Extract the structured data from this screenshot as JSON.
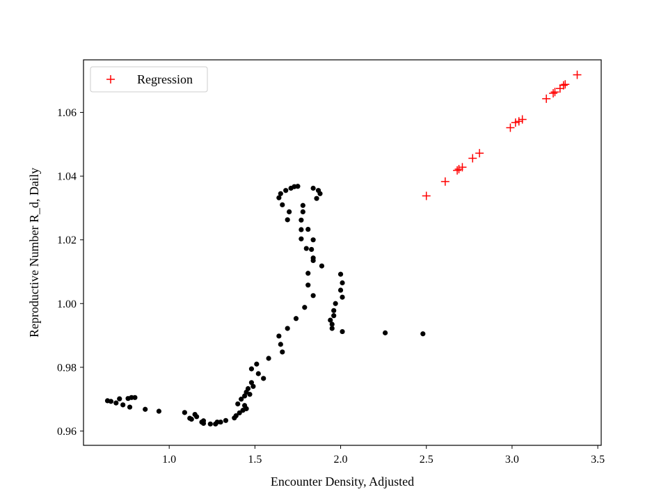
{
  "chart_data": {
    "type": "scatter",
    "title": "",
    "xlabel": "Encounter Density, Adjusted",
    "ylabel": "Reproductive Number R_d, Daily",
    "xlim": [
      0.5,
      3.52
    ],
    "ylim": [
      0.9555,
      1.0765
    ],
    "xticks": [
      1.0,
      1.5,
      2.0,
      2.5,
      3.0,
      3.5
    ],
    "xtick_labels": [
      "1.0",
      "1.5",
      "2.0",
      "2.5",
      "3.0",
      "3.5"
    ],
    "yticks": [
      0.96,
      0.98,
      1.0,
      1.02,
      1.04,
      1.06
    ],
    "ytick_labels": [
      "0.96",
      "0.98",
      "1.00",
      "1.02",
      "1.04",
      "1.06"
    ],
    "grid": false,
    "legend": {
      "position": "top-left",
      "entries": [
        "Regression"
      ]
    },
    "series": [
      {
        "marker": "dot",
        "color": "#000000",
        "points": [
          [
            0.64,
            0.9695
          ],
          [
            0.66,
            0.9693
          ],
          [
            0.69,
            0.9688
          ],
          [
            0.71,
            0.9701
          ],
          [
            0.73,
            0.9682
          ],
          [
            0.76,
            0.9702
          ],
          [
            0.77,
            0.9675
          ],
          [
            0.78,
            0.9705
          ],
          [
            0.8,
            0.9705
          ],
          [
            0.86,
            0.9668
          ],
          [
            0.94,
            0.9662
          ],
          [
            1.09,
            0.9658
          ],
          [
            1.12,
            0.964
          ],
          [
            1.13,
            0.9637
          ],
          [
            1.15,
            0.9652
          ],
          [
            1.16,
            0.9645
          ],
          [
            1.19,
            0.9628
          ],
          [
            1.2,
            0.9632
          ],
          [
            1.2,
            0.9624
          ],
          [
            1.24,
            0.9622
          ],
          [
            1.27,
            0.9622
          ],
          [
            1.28,
            0.9628
          ],
          [
            1.3,
            0.9628
          ],
          [
            1.33,
            0.9633
          ],
          [
            1.38,
            0.9641
          ],
          [
            1.39,
            0.9648
          ],
          [
            1.4,
            0.9685
          ],
          [
            1.41,
            0.9657
          ],
          [
            1.42,
            0.97
          ],
          [
            1.43,
            0.9665
          ],
          [
            1.44,
            0.971
          ],
          [
            1.44,
            0.968
          ],
          [
            1.45,
            0.9722
          ],
          [
            1.45,
            0.967
          ],
          [
            1.46,
            0.9733
          ],
          [
            1.47,
            0.9715
          ],
          [
            1.48,
            0.9752
          ],
          [
            1.48,
            0.9795
          ],
          [
            1.49,
            0.974
          ],
          [
            1.51,
            0.981
          ],
          [
            1.52,
            0.978
          ],
          [
            1.55,
            0.9765
          ],
          [
            1.58,
            0.9828
          ],
          [
            1.64,
            0.9898
          ],
          [
            1.65,
            0.9872
          ],
          [
            1.66,
            0.9848
          ],
          [
            1.69,
            0.9922
          ],
          [
            1.74,
            0.9953
          ],
          [
            1.79,
            0.9988
          ],
          [
            1.84,
            1.0025
          ],
          [
            1.81,
            1.0058
          ],
          [
            1.81,
            1.0095
          ],
          [
            1.84,
            1.0143
          ],
          [
            1.84,
            1.0135
          ],
          [
            1.83,
            1.017
          ],
          [
            1.8,
            1.0173
          ],
          [
            1.84,
            1.02
          ],
          [
            1.81,
            1.0233
          ],
          [
            1.77,
            1.0203
          ],
          [
            1.77,
            1.0232
          ],
          [
            1.77,
            1.0262
          ],
          [
            1.78,
            1.0288
          ],
          [
            1.78,
            1.0308
          ],
          [
            1.69,
            1.0263
          ],
          [
            1.7,
            1.0288
          ],
          [
            1.66,
            1.031
          ],
          [
            1.64,
            1.0332
          ],
          [
            1.65,
            1.0345
          ],
          [
            1.68,
            1.0355
          ],
          [
            1.71,
            1.0362
          ],
          [
            1.73,
            1.0367
          ],
          [
            1.75,
            1.0368
          ],
          [
            1.84,
            1.0362
          ],
          [
            1.87,
            1.0355
          ],
          [
            1.88,
            1.0345
          ],
          [
            1.86,
            1.033
          ],
          [
            1.89,
            1.0118
          ],
          [
            1.94,
            0.9948
          ],
          [
            1.95,
            0.9935
          ],
          [
            1.95,
            0.9922
          ],
          [
            1.96,
            0.9978
          ],
          [
            1.96,
            0.9962
          ],
          [
            1.97,
            1.0
          ],
          [
            2.0,
            1.0092
          ],
          [
            2.0,
            1.0042
          ],
          [
            2.01,
            1.0065
          ],
          [
            2.01,
            1.002
          ],
          [
            2.01,
            0.9912
          ],
          [
            2.26,
            0.9908
          ],
          [
            2.48,
            0.9905
          ]
        ]
      },
      {
        "name": "Regression",
        "marker": "plus",
        "color": "#ff0000",
        "points": [
          [
            2.5,
            1.0338
          ],
          [
            2.61,
            1.0383
          ],
          [
            2.68,
            1.0418
          ],
          [
            2.69,
            1.0422
          ],
          [
            2.71,
            1.0428
          ],
          [
            2.77,
            1.0456
          ],
          [
            2.81,
            1.0472
          ],
          [
            2.99,
            1.0552
          ],
          [
            3.02,
            1.0568
          ],
          [
            3.04,
            1.0572
          ],
          [
            3.06,
            1.0578
          ],
          [
            3.2,
            1.0643
          ],
          [
            3.24,
            1.066
          ],
          [
            3.25,
            1.0664
          ],
          [
            3.28,
            1.0675
          ],
          [
            3.3,
            1.0685
          ],
          [
            3.31,
            1.0688
          ],
          [
            3.38,
            1.0718
          ]
        ]
      }
    ]
  }
}
